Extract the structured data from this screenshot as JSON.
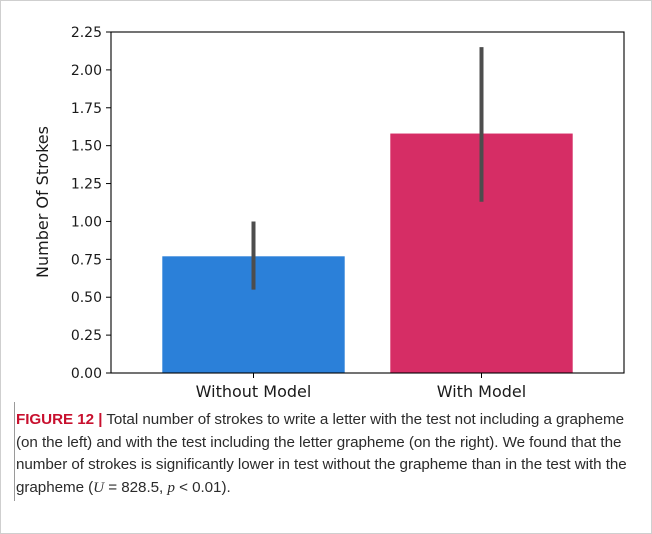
{
  "chart_data": {
    "type": "bar",
    "categories": [
      "Without Model",
      "With Model"
    ],
    "values": [
      0.77,
      1.58
    ],
    "error_bars": [
      [
        0.55,
        1.0
      ],
      [
        1.13,
        2.15
      ]
    ],
    "colors": [
      "#2b80d9",
      "#d62d65"
    ],
    "error_bar_color": "#4d4d4d",
    "xlabel": "",
    "ylabel": "Number Of Strokes",
    "ylim": [
      0,
      2.25
    ],
    "yticks": [
      "0.00",
      "0.25",
      "0.50",
      "0.75",
      "1.00",
      "1.25",
      "1.50",
      "1.75",
      "2.00",
      "2.25"
    ],
    "grid": false,
    "legend": "none"
  },
  "caption": {
    "label": "FIGURE 12",
    "separator": "|",
    "text_before_math": "Total number of strokes to write a letter with the test not including a grapheme (on the left) and with the test including the letter grapheme (on the right). We found that the number of strokes is significantly lower in test without the grapheme than in the test with the grapheme (",
    "math_u": "U",
    "math_u_value": " = 828.5, ",
    "math_p": "p",
    "math_p_value": " < 0.01",
    "text_after_math": ")."
  }
}
